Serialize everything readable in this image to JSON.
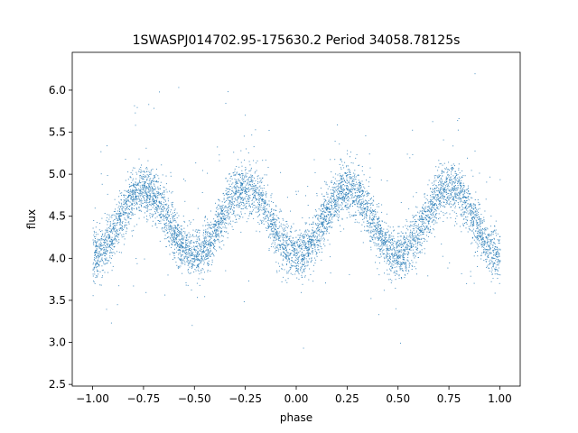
{
  "chart_data": {
    "type": "scatter",
    "title": "1SWASPJ014702.95-175630.2 Period 34058.78125s",
    "xlabel": "phase",
    "ylabel": "flux",
    "xlim": [
      -1.1,
      1.1
    ],
    "ylim": [
      2.48,
      6.45
    ],
    "grid": false,
    "point_color": "#1f77b4",
    "xticks": [
      {
        "value": -1.0,
        "label": "−1.00"
      },
      {
        "value": -0.75,
        "label": "−0.75"
      },
      {
        "value": -0.5,
        "label": "−0.50"
      },
      {
        "value": -0.25,
        "label": "−0.25"
      },
      {
        "value": 0.0,
        "label": "0.00"
      },
      {
        "value": 0.25,
        "label": "0.25"
      },
      {
        "value": 0.5,
        "label": "0.50"
      },
      {
        "value": 0.75,
        "label": "0.75"
      },
      {
        "value": 1.0,
        "label": "1.00"
      }
    ],
    "yticks": [
      {
        "value": 2.5,
        "label": "2.5"
      },
      {
        "value": 3.0,
        "label": "3.0"
      },
      {
        "value": 3.5,
        "label": "3.5"
      },
      {
        "value": 4.0,
        "label": "4.0"
      },
      {
        "value": 4.5,
        "label": "4.5"
      },
      {
        "value": 5.0,
        "label": "5.0"
      },
      {
        "value": 5.5,
        "label": "5.5"
      },
      {
        "value": 6.0,
        "label": "6.0"
      }
    ],
    "trend": {
      "x": [
        -1.0,
        -0.75,
        -0.5,
        -0.25,
        0.0,
        0.25,
        0.5,
        0.75,
        1.0
      ],
      "y": [
        4.05,
        4.82,
        4.05,
        4.85,
        4.05,
        4.82,
        4.05,
        4.85,
        4.05
      ]
    },
    "x_range": [
      -1.0,
      1.0
    ],
    "scatter_width": 0.15
  }
}
